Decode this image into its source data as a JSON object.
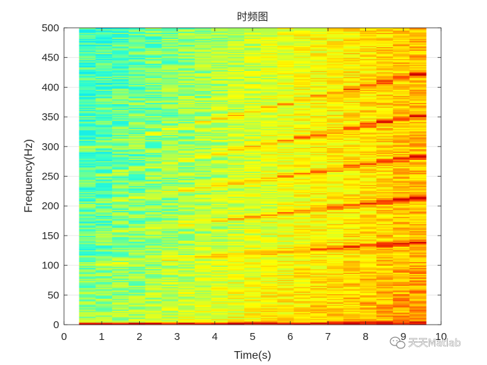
{
  "chart_data": {
    "type": "heatmap",
    "title": "时频图",
    "xlabel": "Time(s)",
    "ylabel": "Frequency(Hz)",
    "xlim": [
      0,
      10
    ],
    "ylim": [
      0,
      500
    ],
    "xticks": [
      0,
      1,
      2,
      3,
      4,
      5,
      6,
      7,
      8,
      9,
      10
    ],
    "yticks": [
      0,
      50,
      100,
      150,
      200,
      250,
      300,
      350,
      400,
      450,
      500
    ],
    "time_extent": [
      0.4,
      9.6
    ],
    "frequency_extent": [
      0,
      500
    ],
    "time_bins": 21,
    "frequency_bins": 250,
    "colormap": [
      "#00e0ff",
      "#33ffcc",
      "#b3ff4d",
      "#ffff00",
      "#ffb000",
      "#ff4000",
      "#cc0000"
    ],
    "ridges": [
      {
        "from": [
          0.4,
          100
        ],
        "to": [
          9.6,
          140
        ]
      },
      {
        "from": [
          0.4,
          150
        ],
        "to": [
          9.6,
          215
        ]
      },
      {
        "from": [
          0.4,
          200
        ],
        "to": [
          9.6,
          285
        ]
      },
      {
        "from": [
          0.4,
          245
        ],
        "to": [
          9.6,
          355
        ]
      },
      {
        "from": [
          0.4,
          295
        ],
        "to": [
          9.6,
          425
        ]
      },
      {
        "from": [
          0.4,
          2
        ],
        "to": [
          9.6,
          2
        ]
      }
    ],
    "grid": true,
    "legend": "none"
  },
  "watermark": {
    "text": "天天Matlab",
    "icon": "wechat-icon"
  }
}
